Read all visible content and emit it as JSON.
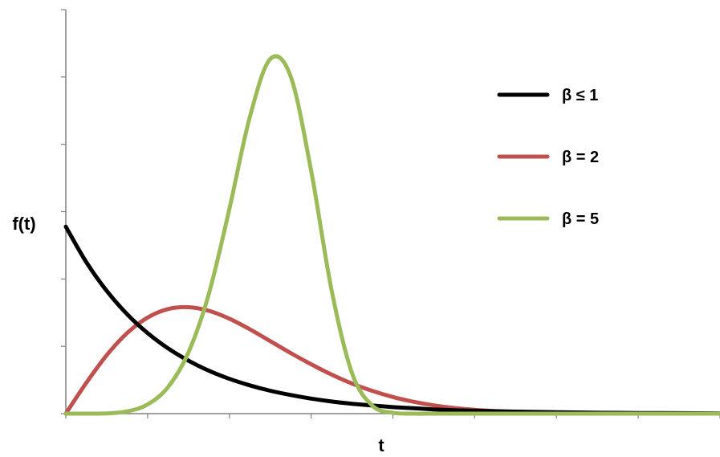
{
  "chart_data": {
    "type": "line",
    "title": "",
    "xlabel": "t",
    "ylabel": "f(t)",
    "xlim": [
      0,
      8
    ],
    "ylim": [
      0,
      1.8
    ],
    "grid": false,
    "legend_position": "top-right",
    "x": [
      0,
      0.25,
      0.5,
      0.75,
      1.0,
      1.25,
      1.5,
      1.75,
      2.0,
      2.25,
      2.5,
      2.75,
      3.0,
      3.25,
      3.5,
      3.75,
      4.0,
      4.25,
      4.5,
      4.75,
      5.0,
      5.5,
      6.0,
      6.5,
      7.0,
      7.5,
      8.0
    ],
    "series": [
      {
        "name": "β ≤ 1",
        "color": "#000000",
        "values": [
          0.833,
          0.675,
          0.547,
          0.443,
          0.359,
          0.291,
          0.236,
          0.191,
          0.155,
          0.126,
          0.102,
          0.083,
          0.067,
          0.054,
          0.044,
          0.036,
          0.029,
          0.024,
          0.019,
          0.015,
          0.013,
          0.009,
          0.006,
          0.004,
          0.003,
          0.002,
          0.001
        ]
      },
      {
        "name": "β = 2",
        "color": "#c0504d",
        "values": [
          0.0,
          0.137,
          0.26,
          0.359,
          0.428,
          0.466,
          0.474,
          0.458,
          0.423,
          0.376,
          0.323,
          0.27,
          0.22,
          0.174,
          0.134,
          0.101,
          0.074,
          0.053,
          0.037,
          0.025,
          0.017,
          0.007,
          0.003,
          0.001,
          0.0,
          0.0,
          0.0
        ]
      },
      {
        "name": "β = 5",
        "color": "#9bbb59",
        "values": [
          0.0,
          0.0,
          0.001,
          0.01,
          0.041,
          0.118,
          0.273,
          0.535,
          0.912,
          1.321,
          1.58,
          1.502,
          1.083,
          0.55,
          0.18,
          0.035,
          0.004,
          0.0,
          0.0,
          0.0,
          0.0,
          0.0,
          0.0,
          0.0,
          0.0,
          0.0,
          0.0
        ]
      }
    ]
  }
}
